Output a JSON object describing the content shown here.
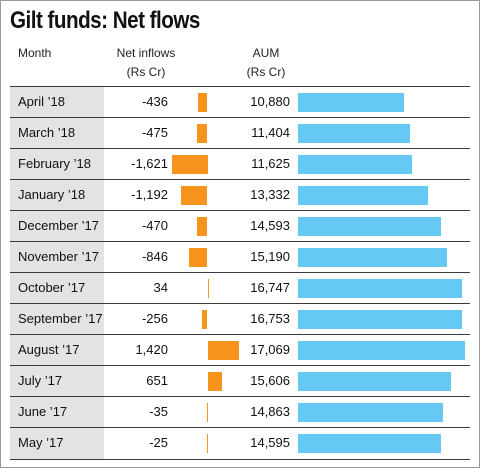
{
  "chart_data": {
    "type": "table",
    "title": "Gilt funds: Net flows",
    "columns": {
      "month": "Month",
      "net_inflows": [
        "Net inflows",
        "(Rs Cr)"
      ],
      "aum": [
        "AUM",
        "(Rs Cr)"
      ]
    },
    "rows": [
      {
        "month": "April ’18",
        "net_inflows": -436,
        "net_inflows_label": "-436",
        "aum": 10880,
        "aum_label": "10,880"
      },
      {
        "month": "March ’18",
        "net_inflows": -475,
        "net_inflows_label": "-475",
        "aum": 11404,
        "aum_label": "11,404"
      },
      {
        "month": "February ’18",
        "net_inflows": -1621,
        "net_inflows_label": "-1,621",
        "aum": 11625,
        "aum_label": "11,625"
      },
      {
        "month": "January ’18",
        "net_inflows": -1192,
        "net_inflows_label": "-1,192",
        "aum": 13332,
        "aum_label": "13,332"
      },
      {
        "month": "December ’17",
        "net_inflows": -470,
        "net_inflows_label": "-470",
        "aum": 14593,
        "aum_label": "14,593"
      },
      {
        "month": "November ’17",
        "net_inflows": -846,
        "net_inflows_label": "-846",
        "aum": 15190,
        "aum_label": "15,190"
      },
      {
        "month": "October ’17",
        "net_inflows": 34,
        "net_inflows_label": "34",
        "aum": 16747,
        "aum_label": "16,747"
      },
      {
        "month": "September ’17",
        "net_inflows": -256,
        "net_inflows_label": "-256",
        "aum": 16753,
        "aum_label": "16,753"
      },
      {
        "month": "August ’17",
        "net_inflows": 1420,
        "net_inflows_label": "1,420",
        "aum": 17069,
        "aum_label": "17,069"
      },
      {
        "month": "July ’17",
        "net_inflows": 651,
        "net_inflows_label": "651",
        "aum": 15606,
        "aum_label": "15,606"
      },
      {
        "month": "June ’17",
        "net_inflows": -35,
        "net_inflows_label": "-35",
        "aum": 14863,
        "aum_label": "14,863"
      },
      {
        "month": "May ’17",
        "net_inflows": -25,
        "net_inflows_label": "-25",
        "aum": 14595,
        "aum_label": "14,595"
      }
    ],
    "colors": {
      "net_inflows_bar": "#f7941d",
      "aum_bar": "#66c9f4",
      "month_cell": "#e3e3e3",
      "rule": "#3b3b3b"
    }
  }
}
